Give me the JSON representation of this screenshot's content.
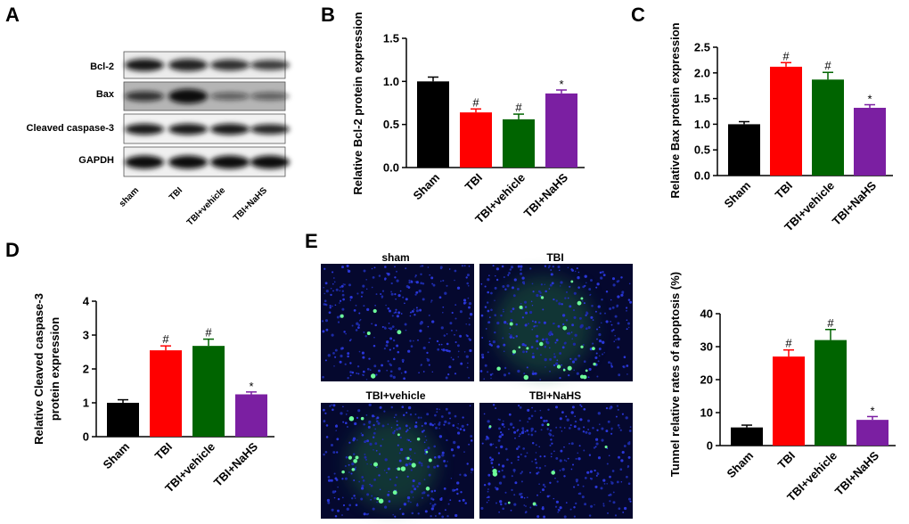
{
  "panels": {
    "A": "A",
    "B": "B",
    "C": "C",
    "D": "D",
    "E": "E"
  },
  "colors": {
    "Sham": "#000000",
    "TBI": "#ff0000",
    "TBI+vehicle": "#006400",
    "TBI+NaHS": "#7b1fa2"
  },
  "blot": {
    "rows": [
      "Bcl-2",
      "Bax",
      "Cleaved caspase-3",
      "GAPDH"
    ],
    "lanes": [
      "sham",
      "TBI",
      "TBI+vehicle",
      "TBI+NaHS"
    ]
  },
  "micrographs": {
    "labels": [
      "sham",
      "TBI",
      "TBI+vehicle",
      "TBI+NaHS"
    ]
  },
  "chart_data": [
    {
      "id": "B",
      "type": "bar",
      "categories": [
        "Sham",
        "TBI",
        "TBI+vehicle",
        "TBI+NaHS"
      ],
      "values": [
        1.0,
        0.64,
        0.56,
        0.86
      ],
      "errors": [
        0.05,
        0.04,
        0.06,
        0.04
      ],
      "marks": [
        "",
        "#",
        "#",
        "*"
      ],
      "ylabel": "Relative Bcl-2 protein expression",
      "ylim": [
        0,
        1.5
      ],
      "yticks": [
        "0.0",
        "0.5",
        "1.0",
        "1.5"
      ]
    },
    {
      "id": "C",
      "type": "bar",
      "categories": [
        "Sham",
        "TBI",
        "TBI+vehicle",
        "TBI+NaHS"
      ],
      "values": [
        1.0,
        2.12,
        1.87,
        1.32
      ],
      "errors": [
        0.05,
        0.08,
        0.14,
        0.06
      ],
      "marks": [
        "",
        "#",
        "#",
        "*"
      ],
      "ylabel": "Relative Bax protein expression",
      "ylim": [
        0,
        2.5
      ],
      "yticks": [
        "0.0",
        "0.5",
        "1.0",
        "1.5",
        "2.0",
        "2.5"
      ]
    },
    {
      "id": "D",
      "type": "bar",
      "categories": [
        "Sham",
        "TBI",
        "TBI+vehicle",
        "TBI+NaHS"
      ],
      "values": [
        1.0,
        2.55,
        2.68,
        1.25
      ],
      "errors": [
        0.09,
        0.13,
        0.2,
        0.07
      ],
      "marks": [
        "",
        "#",
        "#",
        "*"
      ],
      "ylabel_lines": [
        "Relative Cleaved caspase-3",
        "protein expression"
      ],
      "ylim": [
        0,
        4
      ],
      "yticks": [
        "0",
        "1",
        "2",
        "3",
        "4"
      ]
    },
    {
      "id": "E",
      "type": "bar",
      "categories": [
        "Sham",
        "TBI",
        "TBI+vehicle",
        "TBI+NaHS"
      ],
      "values": [
        5.5,
        27.0,
        32.0,
        7.8
      ],
      "errors": [
        0.7,
        2.0,
        3.2,
        1.0
      ],
      "marks": [
        "",
        "#",
        "#",
        "*"
      ],
      "ylabel": "Tunnel relative rates of apoptosis (%)",
      "ylim": [
        0,
        40
      ],
      "yticks": [
        "0",
        "10",
        "20",
        "30",
        "40"
      ]
    }
  ]
}
